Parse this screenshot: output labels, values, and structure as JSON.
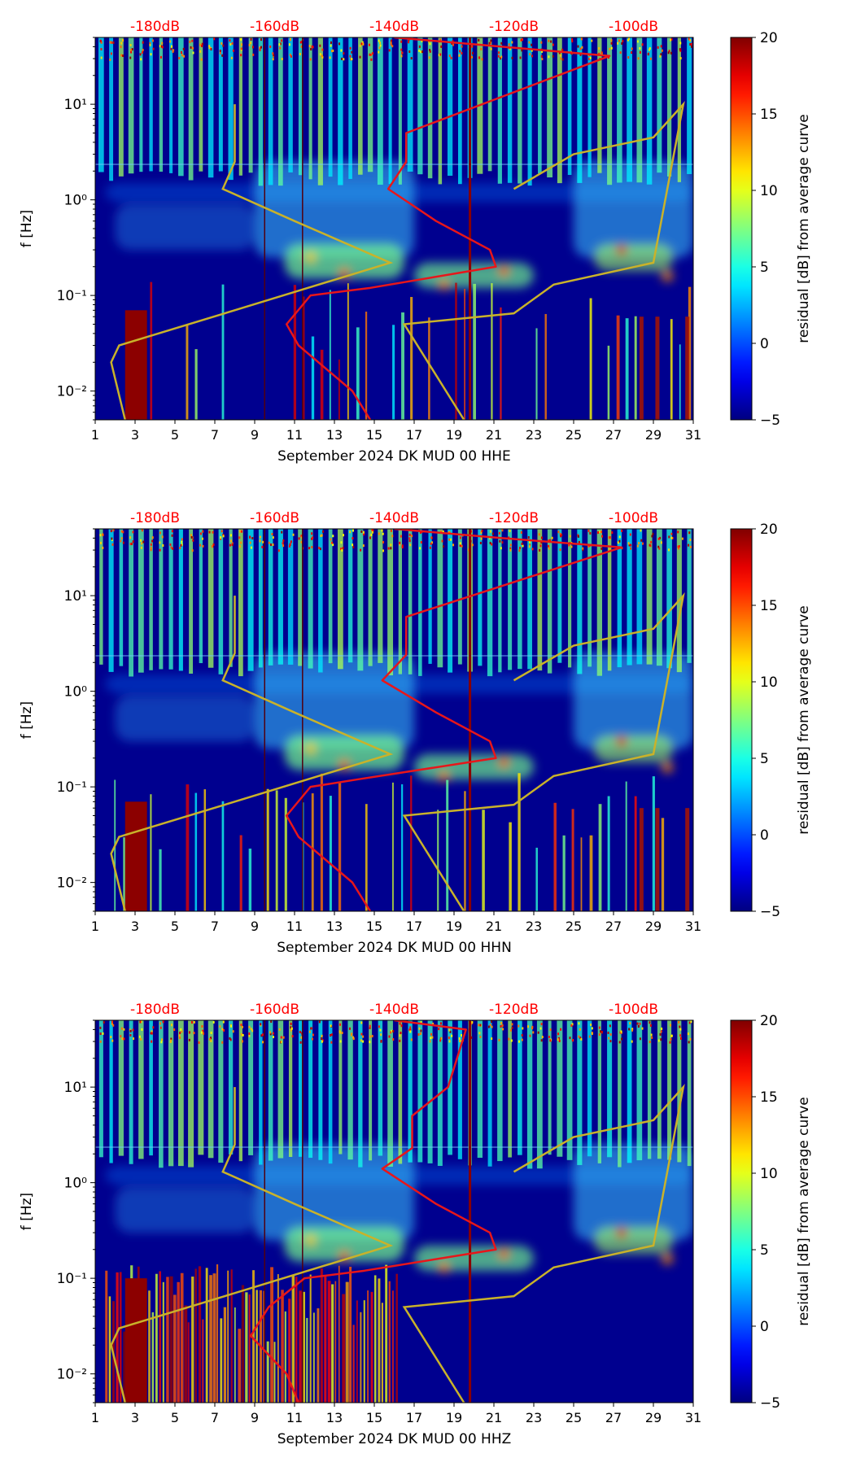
{
  "figure": {
    "panels": [
      {
        "xlabel": "September 2024 DK MUD 00 HHE"
      },
      {
        "xlabel": "September 2024 DK MUD 00 HHN"
      },
      {
        "xlabel": "September 2024 DK MUD 00 HHZ"
      }
    ],
    "ylabel": "f [Hz]",
    "colorbar_label": "residual [dB] from average curve",
    "top_axis_labels": [
      "-180dB",
      "-160dB",
      "-140dB",
      "-120dB",
      "-100dB"
    ],
    "x_tick_labels": [
      "1",
      "3",
      "5",
      "7",
      "9",
      "11",
      "13",
      "15",
      "17",
      "19",
      "21",
      "23",
      "25",
      "27",
      "29",
      "31"
    ],
    "y_tick_labels": [
      "10¹",
      "10⁰",
      "10⁻¹",
      "10⁻²"
    ],
    "colorbar_tick_labels": [
      "20",
      "15",
      "10",
      "5",
      "0",
      "−5"
    ],
    "colors": {
      "top_axis_text": "#ff0000",
      "psd_curve": "#e8161a",
      "gold_curve": "#c9b22a",
      "background": "#00008f"
    }
  },
  "chart_data": [
    {
      "type": "heatmap",
      "xlabel": "September 2024 DK MUD 00 HHE",
      "ylabel": "f [Hz]",
      "colorbar_label": "residual [dB] from average curve",
      "xlim": [
        1,
        31
      ],
      "ylim": [
        0.005,
        50
      ],
      "y_scale": "log",
      "clim": [
        -5,
        20
      ],
      "colormap": "jet",
      "top_axis_db": [
        -180,
        -160,
        -140,
        -120,
        -100
      ],
      "red_curve_db_vs_freq": [
        [
          -140,
          50
        ],
        [
          -122,
          40
        ],
        [
          -104,
          32
        ],
        [
          -138,
          5
        ],
        [
          -138,
          2.5
        ],
        [
          -141,
          1.3
        ],
        [
          -133,
          0.6
        ],
        [
          -124,
          0.3
        ],
        [
          -123,
          0.2
        ],
        [
          -144,
          0.12
        ],
        [
          -154,
          0.1
        ],
        [
          -158,
          0.05
        ],
        [
          -156,
          0.03
        ],
        [
          -147,
          0.01
        ],
        [
          -144,
          0.005
        ]
      ],
      "gold_curve_day_vs_freq": [
        [
          8.0,
          10
        ],
        [
          8.0,
          2.5
        ],
        [
          7.4,
          1.3
        ],
        [
          11,
          0.6
        ],
        [
          15.8,
          0.22
        ],
        [
          8.0,
          0.07
        ],
        [
          2.2,
          0.03
        ],
        [
          1.8,
          0.02
        ],
        [
          2.5,
          0.005
        ],
        [
          22.0,
          1.3
        ],
        [
          25,
          3
        ],
        [
          29,
          4.5
        ],
        [
          30.5,
          10
        ],
        [
          29,
          0.22
        ],
        [
          24,
          0.13
        ],
        [
          22,
          0.065
        ],
        [
          16.5,
          0.05
        ],
        [
          19.5,
          0.005
        ]
      ],
      "vertical_lines_day": [
        9.5,
        11.4,
        19.8
      ]
    },
    {
      "type": "heatmap",
      "xlabel": "September 2024 DK MUD 00 HHN",
      "ylabel": "f [Hz]",
      "colorbar_label": "residual [dB] from average curve",
      "xlim": [
        1,
        31
      ],
      "ylim": [
        0.005,
        50
      ],
      "y_scale": "log",
      "clim": [
        -5,
        20
      ],
      "colormap": "jet",
      "top_axis_db": [
        -180,
        -160,
        -140,
        -120,
        -100
      ],
      "red_curve_db_vs_freq": [
        [
          -140,
          50
        ],
        [
          -122,
          40
        ],
        [
          -102,
          32
        ],
        [
          -138,
          6
        ],
        [
          -138,
          2.4
        ],
        [
          -142,
          1.3
        ],
        [
          -133,
          0.6
        ],
        [
          -124,
          0.3
        ],
        [
          -123,
          0.2
        ],
        [
          -146,
          0.12
        ],
        [
          -154,
          0.1
        ],
        [
          -158,
          0.05
        ],
        [
          -156,
          0.03
        ],
        [
          -147,
          0.01
        ],
        [
          -144,
          0.005
        ]
      ],
      "gold_curve_day_vs_freq": [
        [
          8.0,
          10
        ],
        [
          8.0,
          2.5
        ],
        [
          7.4,
          1.3
        ],
        [
          11,
          0.6
        ],
        [
          15.8,
          0.22
        ],
        [
          8.0,
          0.07
        ],
        [
          2.2,
          0.03
        ],
        [
          1.8,
          0.02
        ],
        [
          2.5,
          0.005
        ],
        [
          22.0,
          1.3
        ],
        [
          25,
          3
        ],
        [
          29,
          4.5
        ],
        [
          30.5,
          10
        ],
        [
          29,
          0.22
        ],
        [
          24,
          0.13
        ],
        [
          22,
          0.065
        ],
        [
          16.5,
          0.05
        ],
        [
          19.5,
          0.005
        ]
      ],
      "vertical_lines_day": [
        9.5,
        11.4,
        19.8
      ]
    },
    {
      "type": "heatmap",
      "xlabel": "September 2024 DK MUD 00 HHZ",
      "ylabel": "f [Hz]",
      "colorbar_label": "residual [dB] from average curve",
      "xlim": [
        1,
        31
      ],
      "ylim": [
        0.005,
        50
      ],
      "y_scale": "log",
      "clim": [
        -5,
        20
      ],
      "colormap": "jet",
      "top_axis_db": [
        -180,
        -160,
        -140,
        -120,
        -100
      ],
      "red_curve_db_vs_freq": [
        [
          -140,
          50
        ],
        [
          -128,
          40
        ],
        [
          -131,
          10
        ],
        [
          -137,
          5
        ],
        [
          -137,
          2.3
        ],
        [
          -142,
          1.4
        ],
        [
          -133,
          0.6
        ],
        [
          -124,
          0.3
        ],
        [
          -123,
          0.2
        ],
        [
          -145,
          0.12
        ],
        [
          -155,
          0.1
        ],
        [
          -161,
          0.05
        ],
        [
          -164,
          0.025
        ],
        [
          -158,
          0.01
        ],
        [
          -156,
          0.005
        ]
      ],
      "gold_curve_day_vs_freq": [
        [
          8.0,
          10
        ],
        [
          8.0,
          2.5
        ],
        [
          7.4,
          1.3
        ],
        [
          11,
          0.6
        ],
        [
          15.8,
          0.22
        ],
        [
          8.0,
          0.07
        ],
        [
          2.2,
          0.03
        ],
        [
          1.8,
          0.02
        ],
        [
          2.5,
          0.005
        ],
        [
          22.0,
          1.3
        ],
        [
          25,
          3
        ],
        [
          29,
          4.5
        ],
        [
          30.5,
          10
        ],
        [
          29,
          0.22
        ],
        [
          24,
          0.13
        ],
        [
          22,
          0.065
        ],
        [
          16.5,
          0.05
        ],
        [
          19.5,
          0.005
        ]
      ],
      "vertical_lines_day": [
        9.5,
        11.4,
        19.8
      ]
    }
  ]
}
